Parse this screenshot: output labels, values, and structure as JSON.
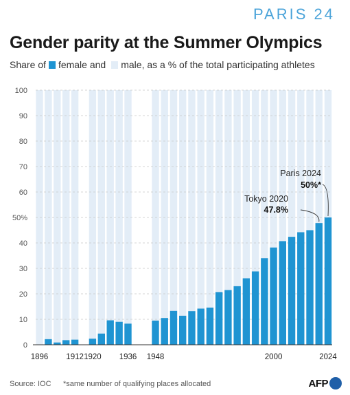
{
  "brand": "PARIS 24",
  "title": "Gender parity at the Summer Olympics",
  "subtitle": {
    "prefix": "Share of",
    "female_label": "female and",
    "male_label": "male, as a % of the total participating athletes"
  },
  "colors": {
    "female": "#1f94d2",
    "male": "#e3edf7",
    "grid": "#c9c9c9",
    "text": "#555555"
  },
  "footer": {
    "source": "Source: IOC",
    "footnote": "*same number of qualifying places allocated",
    "logo": "AFP"
  },
  "chart_data": {
    "type": "bar",
    "title": "Gender parity at the Summer Olympics",
    "ylim": [
      0,
      100
    ],
    "yticks": [
      "0",
      "10",
      "20",
      "30",
      "40",
      "50%",
      "60",
      "70",
      "80",
      "90",
      "100"
    ],
    "xticks": [
      "1896",
      "1912",
      "1920",
      "1936",
      "1948",
      "2000",
      "2024"
    ],
    "reference_line": 50,
    "grid": true,
    "categories": [
      "1896",
      "1900",
      "1904",
      "1908",
      "1912",
      "1920",
      "1924",
      "1928",
      "1932",
      "1936",
      "1948",
      "1952",
      "1956",
      "1960",
      "1964",
      "1968",
      "1972",
      "1976",
      "1980",
      "1984",
      "1988",
      "1992",
      "1996",
      "2000",
      "2004",
      "2008",
      "2012",
      "2016",
      "2020",
      "2024"
    ],
    "series": [
      {
        "name": "female",
        "values": [
          0,
          2.2,
          0.9,
          1.8,
          2.0,
          2.4,
          4.4,
          9.6,
          9.0,
          8.3,
          9.5,
          10.5,
          13.3,
          11.4,
          13.2,
          14.2,
          14.6,
          20.7,
          21.5,
          23.0,
          26.1,
          28.8,
          34.0,
          38.2,
          40.7,
          42.4,
          44.2,
          45.0,
          47.8,
          50.0
        ]
      },
      {
        "name": "male",
        "values": [
          100,
          97.8,
          99.1,
          98.2,
          98.0,
          97.6,
          95.6,
          90.4,
          91.0,
          91.7,
          90.5,
          89.5,
          86.7,
          88.6,
          86.8,
          85.8,
          85.4,
          79.3,
          78.5,
          77.0,
          73.9,
          71.2,
          66.0,
          61.8,
          59.3,
          57.6,
          55.8,
          55.0,
          52.2,
          50.0
        ]
      }
    ],
    "annotations": [
      {
        "category": "2020",
        "label": "Tokyo 2020",
        "value_text": "47.8%"
      },
      {
        "category": "2024",
        "label": "Paris 2024",
        "value_text": "50%*"
      }
    ]
  }
}
